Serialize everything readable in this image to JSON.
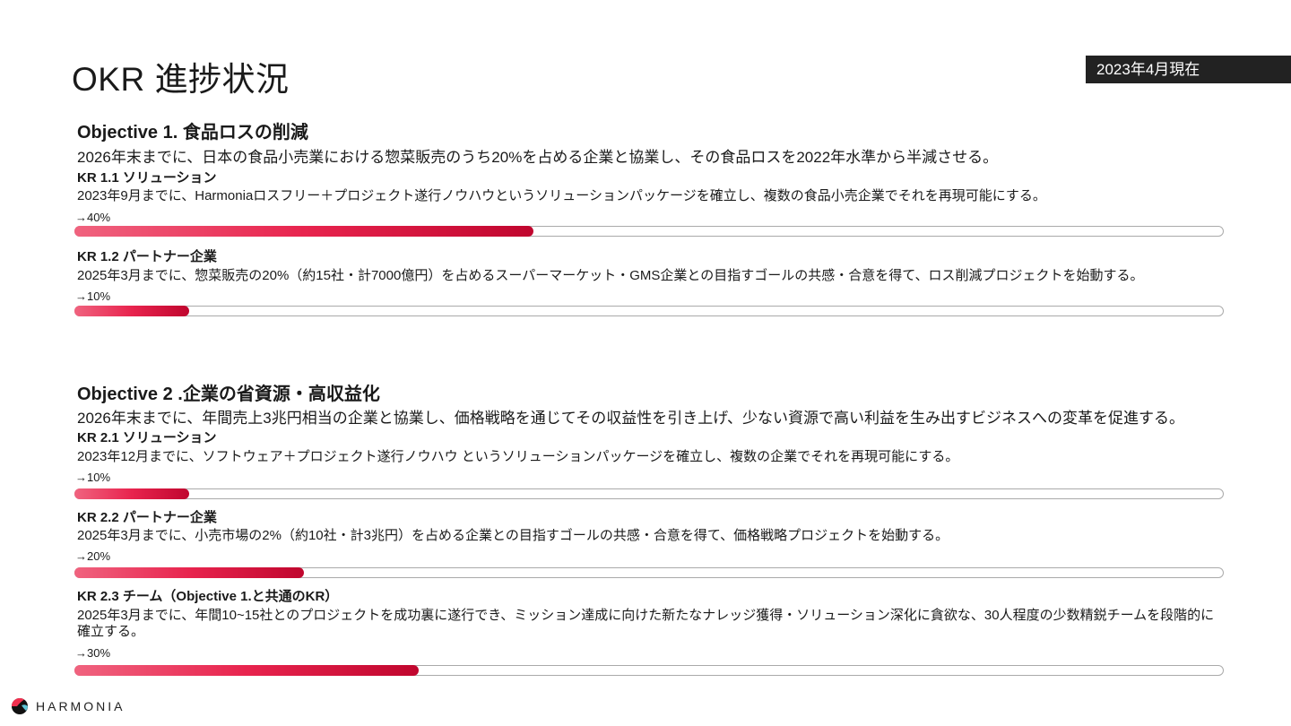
{
  "header": {
    "title": "OKR 進捗状況",
    "date_badge": "2023年4月現在"
  },
  "objectives": [
    {
      "title": "Objective 1. 食品ロスの削減",
      "description": "2026年末までに、日本の食品小売業における惣菜販売のうち20%を占める企業と協業し、その食品ロスを2022年水準から半減させる。",
      "krs": [
        {
          "title": "KR 1.1 ソリューション",
          "description": "2023年9月までに、Harmoniaロスフリー＋プロジェクト遂行ノウハウというソリューションパッケージを確立し、複数の食品小売企業でそれを再現可能にする。",
          "progress_label": "→40%",
          "progress": 40
        },
        {
          "title": "KR 1.2 パートナー企業",
          "description": "2025年3月までに、惣菜販売の20%（約15社・計7000億円）を占めるスーパーマーケット・GMS企業との目指すゴールの共感・合意を得て、ロス削減プロジェクトを始動する。",
          "progress_label": "→10%",
          "progress": 10
        }
      ]
    },
    {
      "title": "Objective 2 .企業の省資源・高収益化",
      "description": "2026年末までに、年間売上3兆円相当の企業と協業し、価格戦略を通じてその収益性を引き上げ、少ない資源で高い利益を生み出すビジネスへの変革を促進する。",
      "krs": [
        {
          "title": "KR 2.1 ソリューション",
          "description": "2023年12月までに、ソフトウェア＋プロジェクト遂行ノウハウ というソリューションパッケージを確立し、複数の企業でそれを再現可能にする。",
          "progress_label": "→10%",
          "progress": 10
        },
        {
          "title": "KR 2.2 パートナー企業",
          "description": "2025年3月までに、小売市場の2%（約10社・計3兆円）を占める企業との目指すゴールの共感・合意を得て、価格戦略プロジェクトを始動する。",
          "progress_label": "→20%",
          "progress": 20
        },
        {
          "title": "KR 2.3 チーム（Objective 1.と共通のKR）",
          "description": "2025年3月までに、年間10~15社とのプロジェクトを成功裏に遂行でき、ミッション達成に向けた新たなナレッジ獲得・ソリューション深化に貪欲な、30人程度の少数精鋭チームを段階的に確立する。",
          "progress_label": "→30%",
          "progress": 30
        }
      ]
    }
  ],
  "footer": {
    "logo_text": "HARMONIA"
  },
  "colors": {
    "accent": "#e8244e",
    "accent_dark": "#c0062e",
    "badge_bg": "#222222"
  }
}
